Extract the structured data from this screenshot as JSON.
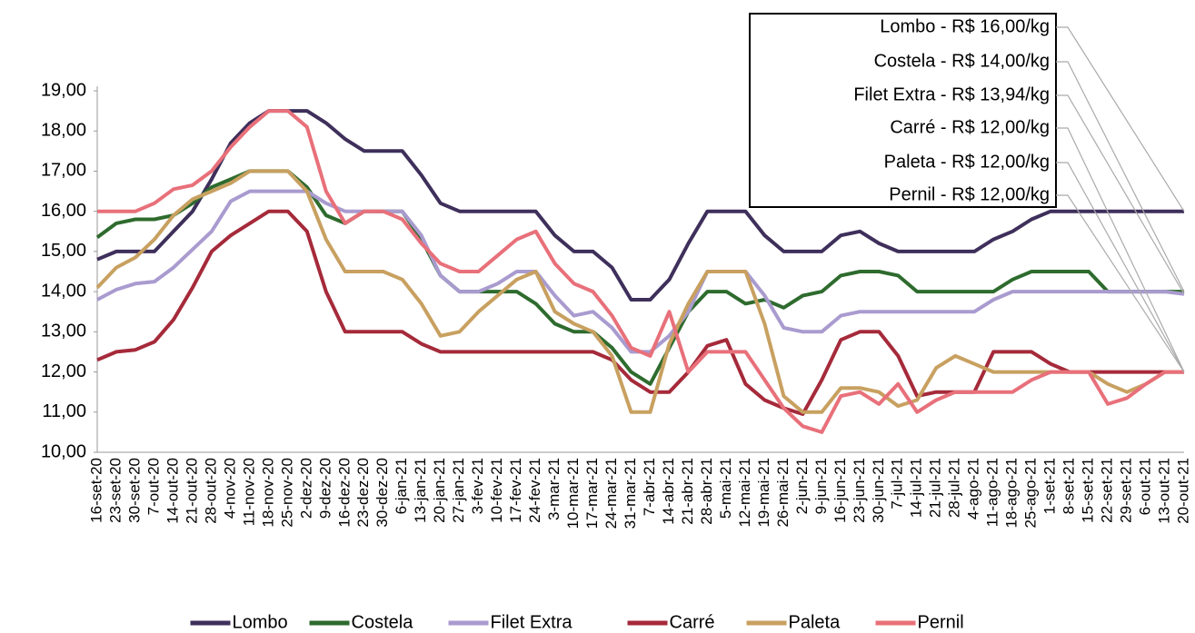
{
  "chart_data": {
    "type": "line",
    "categories": [
      "16-set-20",
      "23-set-20",
      "30-set-20",
      "7-out-20",
      "14-out-20",
      "21-out-20",
      "28-out-20",
      "4-nov-20",
      "11-nov-20",
      "18-nov-20",
      "25-nov-20",
      "2-dez-20",
      "9-dez-20",
      "16-dez-20",
      "23-dez-20",
      "30-dez-20",
      "6-jan-21",
      "13-jan-21",
      "20-jan-21",
      "27-jan-21",
      "3-fev-21",
      "10-fev-21",
      "17-fev-21",
      "24-fev-21",
      "3-mar-21",
      "10-mar-21",
      "17-mar-21",
      "24-mar-21",
      "31-mar-21",
      "7-abr-21",
      "14-abr-21",
      "21-abr-21",
      "28-abr-21",
      "5-mai-21",
      "12-mai-21",
      "19-mai-21",
      "26-mai-21",
      "2-jun-21",
      "9-jun-21",
      "16-jun-21",
      "23-jun-21",
      "30-jun-21",
      "7-jul-21",
      "14-jul-21",
      "21-jul-21",
      "28-jul-21",
      "4-ago-21",
      "11-ago-21",
      "18-ago-21",
      "25-ago-21",
      "1-set-21",
      "8-set-21",
      "15-set-21",
      "22-set-21",
      "29-set-21",
      "6-out-21",
      "13-out-21",
      "20-out-21"
    ],
    "series": [
      {
        "name": "Lombo",
        "color": "#3e2f5b",
        "values": [
          14.8,
          15,
          15,
          15,
          15.5,
          16,
          16.8,
          17.7,
          18.2,
          18.5,
          18.5,
          18.5,
          18.2,
          17.8,
          17.5,
          17.5,
          17.5,
          16.9,
          16.2,
          16,
          16,
          16,
          16,
          16,
          15.4,
          15,
          15,
          14.6,
          13.8,
          13.8,
          14.3,
          15.2,
          16,
          16,
          16,
          15.4,
          15,
          15,
          15,
          15.4,
          15.5,
          15.2,
          15,
          15,
          15,
          15,
          15,
          15.3,
          15.5,
          15.8,
          16,
          16,
          16,
          16,
          16,
          16,
          16,
          16
        ]
      },
      {
        "name": "Costela",
        "color": "#2e6b2e",
        "values": [
          15.35,
          15.7,
          15.8,
          15.8,
          15.9,
          16.2,
          16.6,
          16.8,
          17,
          17,
          17,
          16.6,
          15.9,
          15.7,
          16,
          16,
          16,
          15.3,
          14.4,
          14,
          14,
          14,
          14,
          13.7,
          13.2,
          13,
          13,
          12.6,
          12,
          11.7,
          12.6,
          13.5,
          14,
          14,
          13.7,
          13.8,
          13.6,
          13.9,
          14,
          14.4,
          14.5,
          14.5,
          14.4,
          14,
          14,
          14,
          14,
          14,
          14.3,
          14.5,
          14.5,
          14.5,
          14.5,
          14,
          14,
          14,
          14,
          14
        ]
      },
      {
        "name": "Filet Extra",
        "color": "#a99bcf",
        "values": [
          13.8,
          14.05,
          14.2,
          14.25,
          14.6,
          15.05,
          15.5,
          16.25,
          16.5,
          16.5,
          16.5,
          16.5,
          16.2,
          16,
          16,
          16,
          16,
          15.4,
          14.4,
          14,
          14,
          14.2,
          14.5,
          14.5,
          13.9,
          13.4,
          13.5,
          13.1,
          12.5,
          12.5,
          12.9,
          13.5,
          14.5,
          14.5,
          14.5,
          13.9,
          13.1,
          13,
          13,
          13.4,
          13.5,
          13.5,
          13.5,
          13.5,
          13.5,
          13.5,
          13.5,
          13.8,
          14,
          14,
          14,
          14,
          14,
          14,
          14,
          14,
          14,
          13.94
        ]
      },
      {
        "name": "Carré",
        "color": "#a52a3a",
        "values": [
          12.3,
          12.5,
          12.55,
          12.75,
          13.3,
          14.1,
          15,
          15.4,
          15.7,
          16,
          16,
          15.5,
          14,
          13,
          13,
          13,
          13,
          12.7,
          12.5,
          12.5,
          12.5,
          12.5,
          12.5,
          12.5,
          12.5,
          12.5,
          12.5,
          12.3,
          11.8,
          11.5,
          11.5,
          12,
          12.65,
          12.8,
          11.7,
          11.3,
          11.1,
          10.95,
          11.8,
          12.8,
          13,
          13,
          12.4,
          11.4,
          11.5,
          11.5,
          11.5,
          12.5,
          12.5,
          12.5,
          12.2,
          12,
          12,
          12,
          12,
          12,
          12,
          12
        ]
      },
      {
        "name": "Paleta",
        "color": "#c8a060",
        "values": [
          14.1,
          14.6,
          14.85,
          15.3,
          15.9,
          16.3,
          16.5,
          16.7,
          17,
          17,
          17,
          16.5,
          15.3,
          14.5,
          14.5,
          14.5,
          14.3,
          13.7,
          12.9,
          13,
          13.5,
          13.9,
          14.3,
          14.5,
          13.5,
          13.2,
          13,
          12.4,
          11,
          11,
          12.7,
          13.7,
          14.5,
          14.5,
          14.5,
          13.2,
          11.4,
          11,
          11,
          11.6,
          11.6,
          11.5,
          11.15,
          11.3,
          12.1,
          12.4,
          12.2,
          12,
          12,
          12,
          12,
          12,
          12,
          11.7,
          11.5,
          11.7,
          12,
          12
        ]
      },
      {
        "name": "Pernil",
        "color": "#e8707a",
        "values": [
          16,
          16,
          16,
          16.2,
          16.55,
          16.65,
          17,
          17.6,
          18.1,
          18.5,
          18.5,
          18.1,
          16.5,
          15.7,
          16,
          16,
          15.8,
          15.2,
          14.7,
          14.5,
          14.5,
          14.9,
          15.3,
          15.5,
          14.7,
          14.2,
          14,
          13.4,
          12.6,
          12.4,
          13.5,
          12,
          12.5,
          12.5,
          12.5,
          11.8,
          11.1,
          10.65,
          10.5,
          11.4,
          11.5,
          11.2,
          11.7,
          11,
          11.3,
          11.5,
          11.5,
          11.5,
          11.5,
          11.8,
          12,
          12,
          12,
          11.2,
          11.35,
          11.7,
          12,
          12
        ]
      }
    ],
    "annotations": [
      "Lombo - R$ 16,00/kg",
      "Costela - R$ 14,00/kg",
      "Filet Extra - R$ 13,94/kg",
      "Carré - R$ 12,00/kg",
      "Paleta - R$ 12,00/kg",
      "Pernil - R$ 12,00/kg"
    ],
    "ylim": [
      10,
      19
    ],
    "yticks": [
      {
        "value": 10,
        "label": "10,00"
      },
      {
        "value": 11,
        "label": "11,00"
      },
      {
        "value": 12,
        "label": "12,00"
      },
      {
        "value": 13,
        "label": "13,00"
      },
      {
        "value": 14,
        "label": "14,00"
      },
      {
        "value": 15,
        "label": "15,00"
      },
      {
        "value": 16,
        "label": "16,00"
      },
      {
        "value": 17,
        "label": "17,00"
      },
      {
        "value": 18,
        "label": "18,00"
      },
      {
        "value": 19,
        "label": "19,00"
      }
    ],
    "grid": false,
    "legend": "bottom"
  }
}
